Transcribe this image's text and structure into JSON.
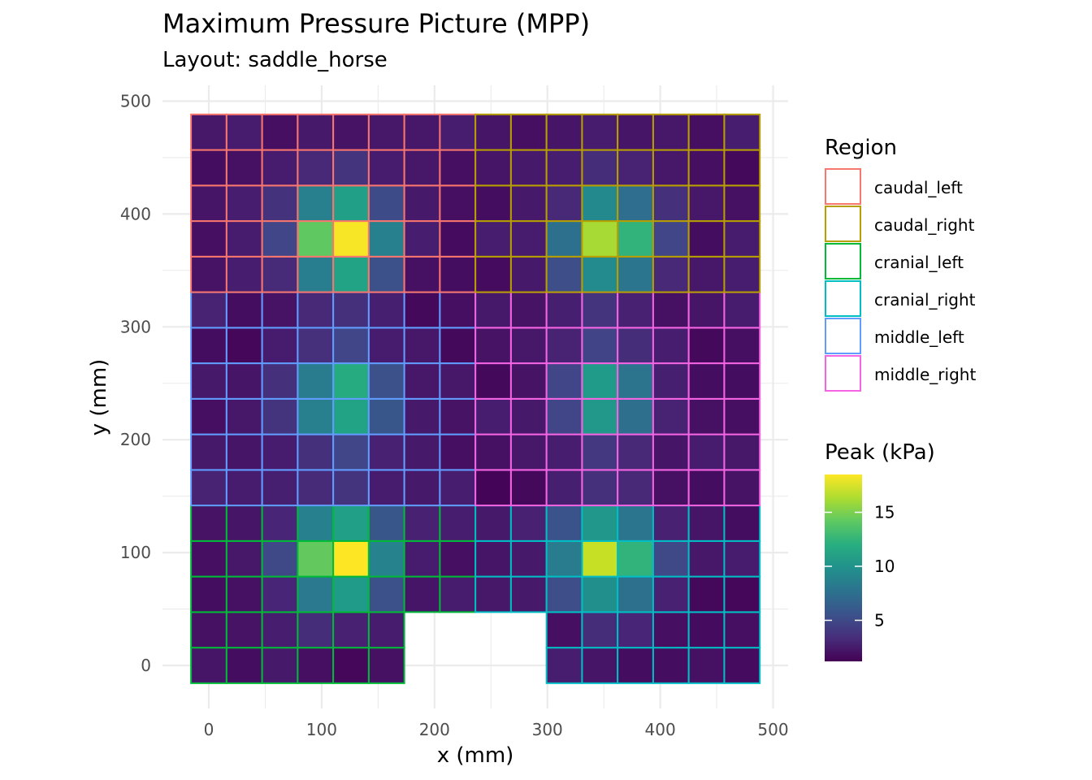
{
  "chart_data": {
    "type": "heatmap",
    "title": "Maximum Pressure Picture (MPP)",
    "subtitle": "Layout: saddle_horse",
    "xlabel": "x (mm)",
    "ylabel": "y (mm)",
    "xlim": [
      -25,
      500
    ],
    "ylim": [
      -25,
      500
    ],
    "x_ticks": [
      0,
      100,
      200,
      300,
      400,
      500
    ],
    "y_ticks": [
      0,
      100,
      200,
      300,
      400,
      500
    ],
    "grid": true,
    "cell_size_mm": 31.5,
    "grid_origin_mm": [
      0,
      0
    ],
    "columns": 16,
    "rows": 16,
    "missing_cells": "row 0-2 for columns 6-9 except row 2 columns 6-9 present; rows 0-1 columns 6-9 absent",
    "regions": [
      {
        "name": "caudal_left",
        "color": "#F8766D",
        "cols": [
          0,
          7
        ],
        "rows": [
          11,
          15
        ]
      },
      {
        "name": "caudal_right",
        "color": "#B79F00",
        "cols": [
          8,
          15
        ],
        "rows": [
          11,
          15
        ]
      },
      {
        "name": "cranial_left",
        "color": "#00BA38",
        "cols": [
          0,
          7
        ],
        "rows": [
          0,
          4
        ]
      },
      {
        "name": "cranial_right",
        "color": "#00BFC4",
        "cols": [
          8,
          15
        ],
        "rows": [
          0,
          4
        ]
      },
      {
        "name": "middle_left",
        "color": "#619CFF",
        "cols": [
          0,
          7
        ],
        "rows": [
          5,
          10
        ]
      },
      {
        "name": "middle_right",
        "color": "#F564E3",
        "cols": [
          8,
          15
        ],
        "rows": [
          5,
          10
        ]
      }
    ],
    "fill_legend": {
      "title": "Peak (kPa)",
      "range": [
        1.2,
        18.5
      ],
      "ticks": [
        5,
        10,
        15
      ],
      "palette": "viridis"
    },
    "values": [
      [
        2.2,
        1.8,
        2.4,
        1.9,
        1.5,
        2.0,
        null,
        null,
        null,
        null,
        2.6,
        2.2,
        1.8,
        1.8,
        2.0,
        1.7
      ],
      [
        2.0,
        2.1,
        2.6,
        3.4,
        2.8,
        2.5,
        null,
        null,
        null,
        null,
        1.9,
        3.4,
        3.0,
        1.9,
        1.7,
        1.9
      ],
      [
        1.8,
        2.0,
        3.0,
        8.2,
        10.6,
        5.4,
        2.2,
        2.5,
        2.3,
        2.4,
        5.3,
        9.8,
        7.6,
        2.8,
        1.6,
        1.5
      ],
      [
        1.9,
        2.3,
        5.0,
        14.3,
        18.5,
        8.8,
        2.5,
        1.9,
        2.2,
        2.4,
        8.4,
        17.0,
        12.4,
        5.0,
        2.3,
        2.5
      ],
      [
        2.1,
        2.2,
        3.0,
        8.7,
        11.0,
        5.8,
        2.8,
        2.6,
        2.4,
        2.8,
        5.6,
        10.2,
        7.9,
        2.8,
        2.2,
        1.8
      ],
      [
        2.9,
        2.5,
        2.7,
        3.3,
        3.8,
        2.5,
        2.4,
        2.6,
        1.4,
        1.6,
        2.7,
        3.6,
        3.2,
        2.0,
        1.8,
        2.1
      ],
      [
        2.4,
        2.2,
        2.5,
        3.6,
        4.8,
        2.8,
        2.4,
        1.9,
        2.0,
        2.3,
        2.6,
        4.0,
        3.2,
        2.2,
        2.5,
        2.3
      ],
      [
        1.9,
        2.3,
        3.8,
        8.6,
        11.2,
        5.8,
        2.4,
        2.1,
        2.6,
        2.4,
        4.8,
        10.4,
        7.5,
        2.9,
        2.0,
        1.9
      ],
      [
        2.4,
        2.2,
        3.6,
        8.4,
        11.8,
        5.4,
        2.3,
        2.3,
        1.6,
        2.1,
        4.8,
        10.6,
        7.8,
        2.7,
        1.8,
        1.8
      ],
      [
        1.8,
        1.5,
        2.5,
        3.5,
        4.8,
        2.5,
        2.3,
        1.6,
        2.1,
        2.3,
        2.9,
        4.7,
        3.4,
        2.6,
        1.6,
        1.9
      ],
      [
        2.9,
        1.8,
        2.1,
        3.2,
        3.6,
        2.7,
        1.6,
        1.9,
        2.4,
        2.1,
        2.7,
        3.8,
        2.8,
        2.0,
        2.2,
        2.5
      ],
      [
        2.1,
        2.6,
        3.3,
        8.5,
        11.2,
        5.4,
        2.0,
        1.8,
        1.7,
        2.4,
        5.3,
        9.4,
        7.9,
        3.2,
        2.3,
        2.6
      ],
      [
        1.9,
        2.5,
        4.8,
        14.2,
        18.3,
        8.7,
        2.6,
        1.7,
        2.6,
        2.5,
        7.6,
        16.2,
        12.4,
        4.8,
        1.8,
        2.5
      ],
      [
        2.2,
        2.6,
        3.7,
        8.6,
        10.9,
        5.2,
        2.4,
        1.9,
        1.8,
        2.4,
        3.2,
        9.3,
        7.4,
        3.6,
        2.3,
        2.0
      ],
      [
        1.8,
        2.0,
        2.5,
        3.2,
        3.8,
        2.5,
        2.3,
        1.9,
        2.2,
        2.4,
        2.6,
        3.4,
        2.9,
        2.3,
        1.9,
        1.6
      ],
      [
        2.3,
        2.5,
        1.9,
        2.4,
        2.1,
        2.3,
        2.3,
        2.6,
        2.2,
        1.9,
        2.2,
        2.5,
        2.2,
        2.3,
        1.9,
        2.6
      ]
    ]
  }
}
